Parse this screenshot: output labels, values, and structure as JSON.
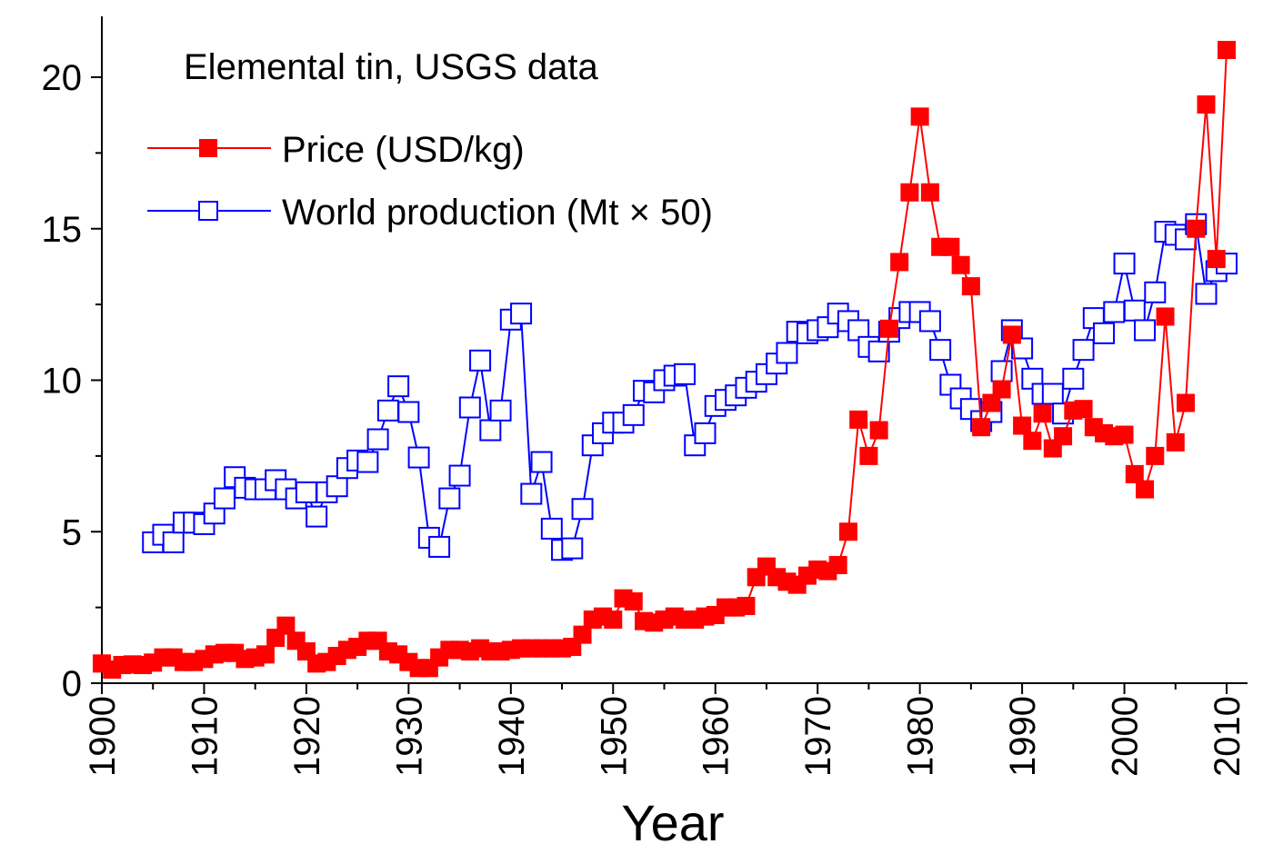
{
  "chart_data": {
    "type": "line",
    "title": "Elemental tin, USGS data",
    "xlabel": "Year",
    "ylabel": "",
    "xlim": [
      1900,
      2012
    ],
    "ylim": [
      0,
      22
    ],
    "grid": false,
    "legend_position": "top-left",
    "x_ticks": [
      "1900",
      "1910",
      "1920",
      "1930",
      "1940",
      "1950",
      "1960",
      "1970",
      "1980",
      "1990",
      "2000",
      "2010"
    ],
    "y_ticks": [
      "0",
      "5",
      "10",
      "15",
      "20"
    ],
    "series": [
      {
        "name": "Price (USD/kg)",
        "color": "#ff0000",
        "marker": "filled-square",
        "x": [
          1900,
          1901,
          1902,
          1903,
          1904,
          1905,
          1906,
          1907,
          1908,
          1909,
          1910,
          1911,
          1912,
          1913,
          1914,
          1915,
          1916,
          1917,
          1918,
          1919,
          1920,
          1921,
          1922,
          1923,
          1924,
          1925,
          1926,
          1927,
          1928,
          1929,
          1930,
          1931,
          1932,
          1933,
          1934,
          1935,
          1936,
          1937,
          1938,
          1939,
          1940,
          1941,
          1942,
          1943,
          1944,
          1945,
          1946,
          1947,
          1948,
          1949,
          1950,
          1951,
          1952,
          1953,
          1954,
          1955,
          1956,
          1957,
          1958,
          1959,
          1960,
          1961,
          1962,
          1963,
          1964,
          1965,
          1966,
          1967,
          1968,
          1969,
          1970,
          1971,
          1972,
          1973,
          1974,
          1975,
          1976,
          1977,
          1978,
          1979,
          1980,
          1981,
          1982,
          1983,
          1984,
          1985,
          1986,
          1987,
          1988,
          1989,
          1990,
          1991,
          1992,
          1993,
          1994,
          1995,
          1996,
          1997,
          1998,
          1999,
          2000,
          2001,
          2002,
          2003,
          2004,
          2005,
          2006,
          2007,
          2008,
          2009,
          2010
        ],
        "values": [
          0.65,
          0.45,
          0.6,
          0.62,
          0.6,
          0.68,
          0.85,
          0.85,
          0.7,
          0.7,
          0.8,
          0.95,
          1.0,
          1.0,
          0.8,
          0.85,
          0.95,
          1.5,
          1.9,
          1.4,
          1.05,
          0.65,
          0.7,
          0.9,
          1.1,
          1.2,
          1.4,
          1.4,
          1.05,
          0.95,
          0.7,
          0.5,
          0.5,
          0.85,
          1.1,
          1.1,
          1.05,
          1.15,
          1.05,
          1.05,
          1.1,
          1.15,
          1.15,
          1.15,
          1.15,
          1.15,
          1.2,
          1.6,
          2.1,
          2.2,
          2.1,
          2.8,
          2.7,
          2.05,
          2.0,
          2.1,
          2.2,
          2.1,
          2.1,
          2.2,
          2.25,
          2.5,
          2.5,
          2.55,
          3.5,
          3.85,
          3.5,
          3.35,
          3.25,
          3.55,
          3.75,
          3.7,
          3.9,
          5.0,
          8.7,
          7.5,
          8.35,
          11.7,
          13.9,
          16.2,
          18.7,
          16.2,
          14.4,
          14.4,
          13.8,
          13.1,
          8.45,
          9.25,
          9.7,
          11.5,
          8.5,
          8.0,
          8.9,
          7.75,
          8.15,
          9.0,
          9.05,
          8.45,
          8.25,
          8.15,
          8.2,
          6.9,
          6.4,
          7.5,
          12.1,
          7.95,
          9.25,
          15.0,
          19.1,
          14.0,
          20.9
        ]
      },
      {
        "name": "World production (Mt × 50)",
        "color": "#0000ff",
        "marker": "open-square",
        "x": [
          1905,
          1906,
          1907,
          1908,
          1909,
          1910,
          1911,
          1912,
          1913,
          1914,
          1915,
          1916,
          1917,
          1918,
          1919,
          1920,
          1921,
          1922,
          1923,
          1924,
          1925,
          1926,
          1927,
          1928,
          1929,
          1930,
          1931,
          1932,
          1933,
          1934,
          1935,
          1936,
          1937,
          1938,
          1939,
          1940,
          1941,
          1942,
          1943,
          1944,
          1945,
          1946,
          1947,
          1948,
          1949,
          1950,
          1951,
          1952,
          1953,
          1954,
          1955,
          1956,
          1957,
          1958,
          1959,
          1960,
          1961,
          1962,
          1963,
          1964,
          1965,
          1966,
          1967,
          1968,
          1969,
          1970,
          1971,
          1972,
          1973,
          1974,
          1975,
          1976,
          1977,
          1978,
          1979,
          1980,
          1981,
          1982,
          1983,
          1984,
          1985,
          1986,
          1987,
          1988,
          1989,
          1990,
          1991,
          1992,
          1993,
          1994,
          1995,
          1996,
          1997,
          1998,
          1999,
          2000,
          2001,
          2002,
          2003,
          2004,
          2005,
          2006,
          2007,
          2008,
          2009,
          2010
        ],
        "values": [
          4.65,
          4.9,
          4.65,
          5.3,
          5.3,
          5.25,
          5.6,
          6.1,
          6.8,
          6.45,
          6.4,
          6.4,
          6.7,
          6.4,
          6.1,
          6.3,
          5.5,
          6.3,
          6.5,
          7.1,
          7.35,
          7.3,
          8.05,
          9.0,
          9.8,
          8.95,
          7.45,
          4.8,
          4.5,
          6.1,
          6.85,
          9.1,
          10.65,
          8.35,
          9.0,
          12.0,
          12.2,
          6.25,
          7.3,
          5.1,
          4.4,
          4.45,
          5.75,
          7.85,
          8.25,
          8.6,
          8.6,
          8.85,
          9.65,
          9.6,
          10.0,
          10.15,
          10.2,
          7.85,
          8.25,
          9.15,
          9.35,
          9.5,
          9.75,
          9.95,
          10.2,
          10.55,
          10.9,
          11.6,
          11.55,
          11.65,
          11.75,
          12.2,
          11.95,
          11.65,
          11.1,
          10.95,
          11.6,
          12.05,
          12.25,
          12.25,
          11.95,
          11.0,
          9.85,
          9.4,
          9.05,
          8.65,
          8.95,
          10.3,
          11.65,
          11.05,
          10.05,
          9.55,
          9.55,
          8.9,
          10.05,
          11.0,
          12.05,
          11.55,
          12.25,
          13.85,
          12.3,
          11.65,
          12.9,
          14.9,
          14.8,
          14.65,
          15.15,
          12.85,
          13.6,
          13.85
        ]
      }
    ]
  }
}
